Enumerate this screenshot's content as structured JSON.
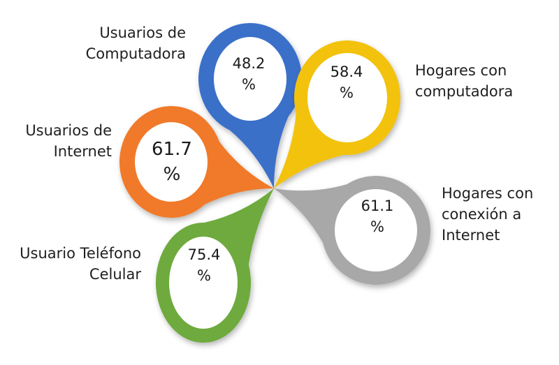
{
  "petals": [
    {
      "id": "usuarios-computadora",
      "label_lines": [
        "Usuarios de",
        "Computadora"
      ],
      "value": "48.2",
      "unit": "%",
      "color": "#3a6fc9"
    },
    {
      "id": "hogares-computadora",
      "label_lines": [
        "Hogares con",
        "computadora"
      ],
      "value": "58.4",
      "unit": "%",
      "color": "#f2c20a"
    },
    {
      "id": "usuarios-internet",
      "label_lines": [
        "Usuarios de",
        "Internet"
      ],
      "value": "61.7",
      "unit": "%",
      "color": "#f07a2a"
    },
    {
      "id": "hogares-internet",
      "label_lines": [
        "Hogares con",
        "conexión a",
        "Internet"
      ],
      "value": "61.1",
      "unit": "%",
      "color": "#a8a8a8"
    },
    {
      "id": "usuario-celular",
      "label_lines": [
        "Usuario Teléfono",
        "Celular"
      ],
      "value": "75.4",
      "unit": "%",
      "color": "#6eaa3c"
    }
  ]
}
